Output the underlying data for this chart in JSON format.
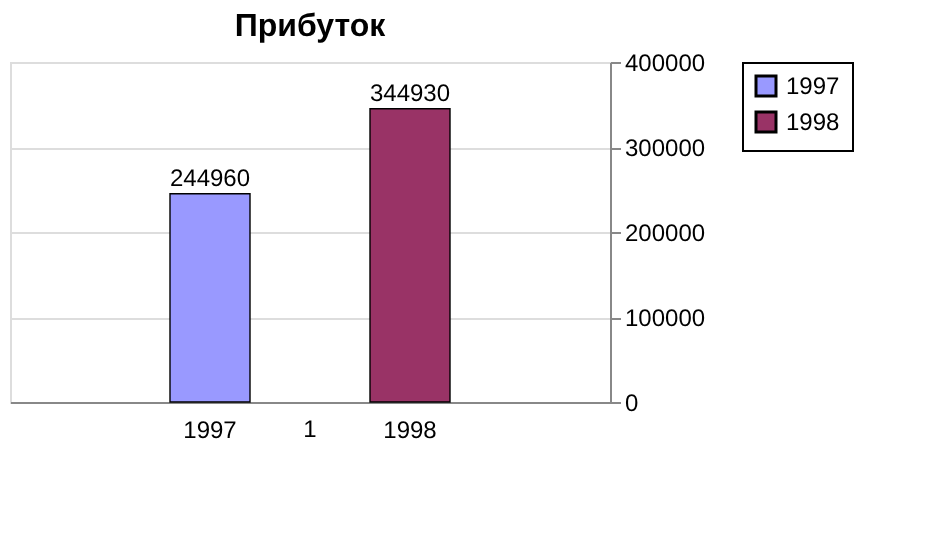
{
  "chart_data": {
    "type": "bar",
    "title": "Прибуток",
    "categories": [
      "1"
    ],
    "series": [
      {
        "name": "1997",
        "color": "#9999ff",
        "values": [
          244960
        ]
      },
      {
        "name": "1998",
        "color": "#993366",
        "values": [
          344930
        ]
      }
    ],
    "ylim": [
      0,
      400000
    ],
    "yticks": [
      0,
      100000,
      200000,
      300000,
      400000
    ],
    "grid": "y",
    "legend": "top right",
    "data_labels": true
  }
}
